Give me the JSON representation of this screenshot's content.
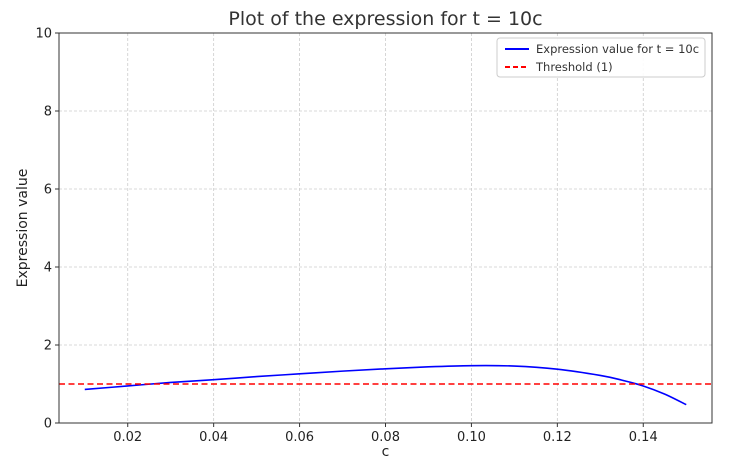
{
  "chart_data": {
    "type": "line",
    "title": "Plot of the expression for t = 10c",
    "xlabel": "c",
    "ylabel": "Expression value",
    "xlim": [
      0.004,
      0.156
    ],
    "ylim": [
      0,
      10
    ],
    "xticks": [
      0.02,
      0.04,
      0.06,
      0.08,
      0.1,
      0.12,
      0.14
    ],
    "xtick_labels": [
      "0.02",
      "0.04",
      "0.06",
      "0.08",
      "0.10",
      "0.12",
      "0.14"
    ],
    "yticks": [
      0,
      2,
      4,
      6,
      8,
      10
    ],
    "ytick_labels": [
      "0",
      "2",
      "4",
      "6",
      "8",
      "10"
    ],
    "grid": true,
    "legend_position": "top-right",
    "series": [
      {
        "name": "Expression value for t = 10c",
        "color": "#0000ff",
        "style": "solid",
        "x": [
          0.01,
          0.02,
          0.03,
          0.04,
          0.05,
          0.06,
          0.07,
          0.08,
          0.09,
          0.1,
          0.11,
          0.12,
          0.13,
          0.135,
          0.14,
          0.145,
          0.15
        ],
        "y": [
          0.86,
          0.95,
          1.04,
          1.11,
          1.19,
          1.26,
          1.33,
          1.39,
          1.44,
          1.47,
          1.46,
          1.38,
          1.22,
          1.1,
          0.95,
          0.74,
          0.47
        ]
      },
      {
        "name": "Threshold (1)",
        "color": "#ff0000",
        "style": "dashed",
        "x": [
          0.004,
          0.156
        ],
        "y": [
          1,
          1
        ]
      }
    ]
  }
}
